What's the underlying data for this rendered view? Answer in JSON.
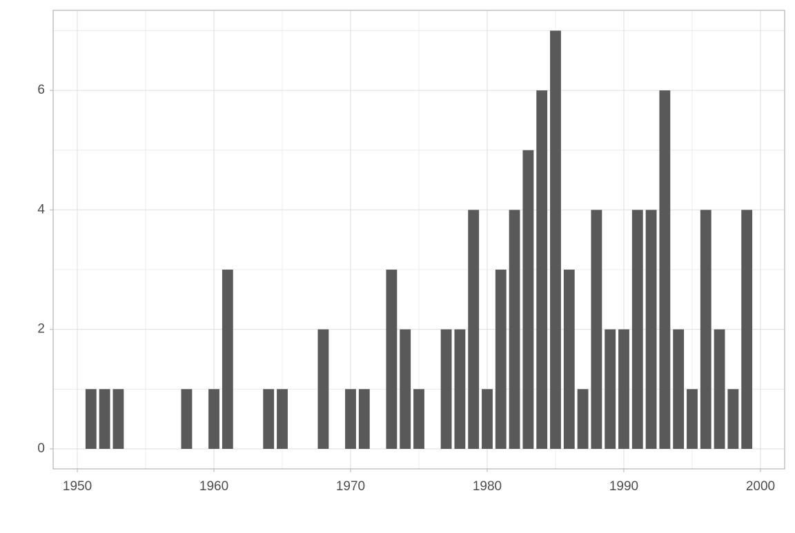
{
  "chart_data": {
    "type": "bar",
    "x": [
      1951,
      1952,
      1953,
      1958,
      1960,
      1961,
      1964,
      1965,
      1968,
      1970,
      1971,
      1973,
      1974,
      1975,
      1977,
      1978,
      1979,
      1980,
      1981,
      1982,
      1983,
      1984,
      1985,
      1986,
      1987,
      1988,
      1989,
      1990,
      1991,
      1992,
      1993,
      1994,
      1995,
      1996,
      1997,
      1998,
      1999
    ],
    "values": [
      1,
      1,
      1,
      1,
      1,
      3,
      1,
      1,
      2,
      1,
      1,
      3,
      2,
      1,
      2,
      2,
      4,
      1,
      3,
      4,
      5,
      6,
      7,
      3,
      1,
      4,
      2,
      2,
      4,
      4,
      6,
      2,
      1,
      4,
      2,
      1,
      4
    ],
    "color": "#595959",
    "xlim": [
      1948.23,
      2001.77
    ],
    "xticks": [
      1950,
      1960,
      1970,
      1980,
      1990,
      2000
    ],
    "ylim": [
      -0.335,
      7.34
    ],
    "yticks": [
      0,
      2,
      4,
      6
    ],
    "grid": true
  }
}
